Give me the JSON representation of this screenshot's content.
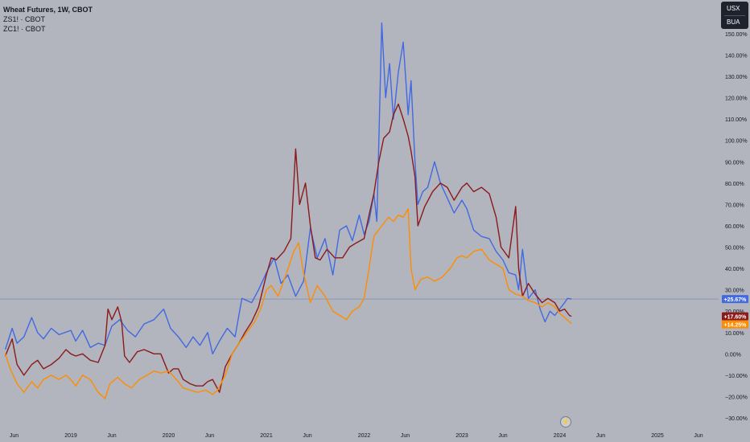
{
  "legend": {
    "title": "Wheat Futures, 1W, CBOT",
    "line2": "ZS1! · CBOT",
    "line3": "ZC1! · CBOT"
  },
  "currency": {
    "primary": "USX",
    "secondary": "BUA"
  },
  "colors": {
    "background": "#b2b5be",
    "wheat": "#4169e1",
    "soybeans": "#8b1a1a",
    "corn": "#ff8c00",
    "baseline": "#7a8fb8",
    "axis_text": "#131722"
  },
  "icons": {
    "replay": "lightning-icon"
  },
  "chart_data": {
    "type": "line",
    "title": "Wheat Futures, 1W, CBOT",
    "y_unit": "%",
    "ylim": [
      -33,
      162
    ],
    "grid": false,
    "legend_position": "top-left",
    "y_ticks": [
      -30,
      -20,
      -10,
      0,
      10,
      20,
      30,
      40,
      50,
      60,
      70,
      80,
      90,
      100,
      110,
      120,
      130,
      140,
      150
    ],
    "y_tick_labels": [
      "−30.00%",
      "−20.00%",
      "−10.00%",
      "0.00%",
      "10.00%",
      "20.00%",
      "30.00%",
      "40.00%",
      "50.00%",
      "60.00%",
      "70.00%",
      "80.00%",
      "90.00%",
      "100.00%",
      "110.00%",
      "120.00%",
      "130.00%",
      "140.00%",
      "150.00%"
    ],
    "x_ticks": [
      {
        "t": 2018.42,
        "label": "Jun"
      },
      {
        "t": 2019.0,
        "label": "2019"
      },
      {
        "t": 2019.42,
        "label": "Jun"
      },
      {
        "t": 2020.0,
        "label": "2020"
      },
      {
        "t": 2020.42,
        "label": "Jun"
      },
      {
        "t": 2021.0,
        "label": "2021"
      },
      {
        "t": 2021.42,
        "label": "Jun"
      },
      {
        "t": 2022.0,
        "label": "2022"
      },
      {
        "t": 2022.42,
        "label": "Jun"
      },
      {
        "t": 2023.0,
        "label": "2023"
      },
      {
        "t": 2023.42,
        "label": "Jun"
      },
      {
        "t": 2024.0,
        "label": "2024"
      },
      {
        "t": 2024.42,
        "label": "Jun"
      },
      {
        "t": 2025.0,
        "label": "2025"
      },
      {
        "t": 2025.42,
        "label": "Jun"
      }
    ],
    "xlim": [
      2018.33,
      2025.7
    ],
    "baseline_value": 25.67,
    "series": [
      {
        "name": "Wheat Futures",
        "color": "#4169e1",
        "last_label": "+25.67%",
        "points": [
          [
            2018.33,
            2
          ],
          [
            2018.4,
            12
          ],
          [
            2018.45,
            5
          ],
          [
            2018.52,
            8
          ],
          [
            2018.6,
            17
          ],
          [
            2018.66,
            10
          ],
          [
            2018.72,
            7
          ],
          [
            2018.8,
            12
          ],
          [
            2018.88,
            9
          ],
          [
            2019.0,
            11
          ],
          [
            2019.05,
            6
          ],
          [
            2019.12,
            11
          ],
          [
            2019.2,
            3
          ],
          [
            2019.28,
            5
          ],
          [
            2019.35,
            4
          ],
          [
            2019.42,
            13
          ],
          [
            2019.5,
            16
          ],
          [
            2019.58,
            11
          ],
          [
            2019.66,
            8
          ],
          [
            2019.75,
            14
          ],
          [
            2019.85,
            16
          ],
          [
            2019.95,
            21
          ],
          [
            2020.02,
            12
          ],
          [
            2020.1,
            8
          ],
          [
            2020.18,
            3
          ],
          [
            2020.25,
            8
          ],
          [
            2020.32,
            4
          ],
          [
            2020.4,
            10
          ],
          [
            2020.45,
            0
          ],
          [
            2020.52,
            6
          ],
          [
            2020.6,
            12
          ],
          [
            2020.68,
            8
          ],
          [
            2020.75,
            26
          ],
          [
            2020.85,
            24
          ],
          [
            2020.92,
            30
          ],
          [
            2021.0,
            38
          ],
          [
            2021.08,
            45
          ],
          [
            2021.15,
            33
          ],
          [
            2021.22,
            37
          ],
          [
            2021.3,
            27
          ],
          [
            2021.38,
            34
          ],
          [
            2021.45,
            59
          ],
          [
            2021.52,
            45
          ],
          [
            2021.6,
            54
          ],
          [
            2021.68,
            37
          ],
          [
            2021.75,
            58
          ],
          [
            2021.82,
            60
          ],
          [
            2021.88,
            53
          ],
          [
            2021.95,
            65
          ],
          [
            2022.0,
            56
          ],
          [
            2022.05,
            62
          ],
          [
            2022.1,
            75
          ],
          [
            2022.13,
            62
          ],
          [
            2022.18,
            155
          ],
          [
            2022.22,
            120
          ],
          [
            2022.26,
            136
          ],
          [
            2022.3,
            110
          ],
          [
            2022.35,
            132
          ],
          [
            2022.4,
            146
          ],
          [
            2022.45,
            112
          ],
          [
            2022.48,
            128
          ],
          [
            2022.52,
            90
          ],
          [
            2022.55,
            70
          ],
          [
            2022.6,
            76
          ],
          [
            2022.65,
            78
          ],
          [
            2022.72,
            90
          ],
          [
            2022.78,
            80
          ],
          [
            2022.85,
            73
          ],
          [
            2022.92,
            66
          ],
          [
            2023.0,
            72
          ],
          [
            2023.05,
            68
          ],
          [
            2023.12,
            58
          ],
          [
            2023.2,
            55
          ],
          [
            2023.28,
            54
          ],
          [
            2023.35,
            48
          ],
          [
            2023.42,
            44
          ],
          [
            2023.48,
            38
          ],
          [
            2023.55,
            37
          ],
          [
            2023.58,
            30
          ],
          [
            2023.62,
            49
          ],
          [
            2023.68,
            26
          ],
          [
            2023.75,
            30
          ],
          [
            2023.8,
            21
          ],
          [
            2023.85,
            15
          ],
          [
            2023.9,
            20
          ],
          [
            2023.95,
            18
          ],
          [
            2024.0,
            21
          ],
          [
            2024.05,
            24
          ],
          [
            2024.08,
            26
          ],
          [
            2024.12,
            25.67
          ]
        ]
      },
      {
        "name": "ZS1! · CBOT",
        "color": "#8b1a1a",
        "last_label": "+17.60%",
        "points": [
          [
            2018.33,
            -1
          ],
          [
            2018.4,
            7
          ],
          [
            2018.45,
            -5
          ],
          [
            2018.52,
            -10
          ],
          [
            2018.6,
            -5
          ],
          [
            2018.66,
            -3
          ],
          [
            2018.72,
            -7
          ],
          [
            2018.8,
            -5
          ],
          [
            2018.88,
            -2
          ],
          [
            2018.95,
            2
          ],
          [
            2019.0,
            0
          ],
          [
            2019.05,
            -1
          ],
          [
            2019.12,
            0
          ],
          [
            2019.2,
            -3
          ],
          [
            2019.28,
            -4
          ],
          [
            2019.35,
            4
          ],
          [
            2019.38,
            21
          ],
          [
            2019.42,
            16
          ],
          [
            2019.48,
            22
          ],
          [
            2019.52,
            15
          ],
          [
            2019.55,
            -1
          ],
          [
            2019.6,
            -4
          ],
          [
            2019.68,
            1
          ],
          [
            2019.75,
            2
          ],
          [
            2019.85,
            0
          ],
          [
            2019.92,
            0
          ],
          [
            2020.0,
            -9
          ],
          [
            2020.05,
            -7
          ],
          [
            2020.1,
            -7
          ],
          [
            2020.15,
            -12
          ],
          [
            2020.22,
            -14
          ],
          [
            2020.28,
            -15
          ],
          [
            2020.35,
            -15
          ],
          [
            2020.4,
            -13
          ],
          [
            2020.45,
            -12
          ],
          [
            2020.52,
            -18
          ],
          [
            2020.58,
            -6
          ],
          [
            2020.65,
            0
          ],
          [
            2020.72,
            5
          ],
          [
            2020.78,
            10
          ],
          [
            2020.85,
            15
          ],
          [
            2020.92,
            22
          ],
          [
            2021.0,
            37
          ],
          [
            2021.05,
            45
          ],
          [
            2021.1,
            44
          ],
          [
            2021.18,
            48
          ],
          [
            2021.25,
            54
          ],
          [
            2021.3,
            96
          ],
          [
            2021.34,
            70
          ],
          [
            2021.4,
            80
          ],
          [
            2021.45,
            60
          ],
          [
            2021.5,
            45
          ],
          [
            2021.55,
            44
          ],
          [
            2021.62,
            49
          ],
          [
            2021.7,
            45
          ],
          [
            2021.78,
            45
          ],
          [
            2021.85,
            50
          ],
          [
            2021.92,
            52
          ],
          [
            2022.0,
            54
          ],
          [
            2022.05,
            65
          ],
          [
            2022.1,
            75
          ],
          [
            2022.15,
            90
          ],
          [
            2022.2,
            101
          ],
          [
            2022.26,
            104
          ],
          [
            2022.3,
            112
          ],
          [
            2022.35,
            117
          ],
          [
            2022.4,
            110
          ],
          [
            2022.45,
            102
          ],
          [
            2022.48,
            95
          ],
          [
            2022.52,
            83
          ],
          [
            2022.55,
            60
          ],
          [
            2022.62,
            69
          ],
          [
            2022.7,
            76
          ],
          [
            2022.78,
            80
          ],
          [
            2022.85,
            78
          ],
          [
            2022.92,
            72
          ],
          [
            2023.0,
            78
          ],
          [
            2023.05,
            80
          ],
          [
            2023.12,
            76
          ],
          [
            2023.2,
            78
          ],
          [
            2023.28,
            75
          ],
          [
            2023.35,
            64
          ],
          [
            2023.4,
            50
          ],
          [
            2023.48,
            45
          ],
          [
            2023.55,
            69
          ],
          [
            2023.58,
            40
          ],
          [
            2023.62,
            27
          ],
          [
            2023.68,
            33
          ],
          [
            2023.75,
            28
          ],
          [
            2023.82,
            24
          ],
          [
            2023.88,
            26
          ],
          [
            2023.95,
            24
          ],
          [
            2024.0,
            20
          ],
          [
            2024.05,
            21
          ],
          [
            2024.1,
            18
          ],
          [
            2024.12,
            17.6
          ]
        ]
      },
      {
        "name": "ZC1! · CBOT",
        "color": "#ff8c00",
        "last_label": "+14.25%",
        "points": [
          [
            2018.33,
            0
          ],
          [
            2018.38,
            -7
          ],
          [
            2018.45,
            -14
          ],
          [
            2018.52,
            -18
          ],
          [
            2018.6,
            -13
          ],
          [
            2018.66,
            -16
          ],
          [
            2018.72,
            -12
          ],
          [
            2018.8,
            -10
          ],
          [
            2018.88,
            -12
          ],
          [
            2018.95,
            -10
          ],
          [
            2019.0,
            -12
          ],
          [
            2019.05,
            -15
          ],
          [
            2019.12,
            -10
          ],
          [
            2019.2,
            -12
          ],
          [
            2019.28,
            -18
          ],
          [
            2019.35,
            -21
          ],
          [
            2019.4,
            -14
          ],
          [
            2019.48,
            -11
          ],
          [
            2019.55,
            -14
          ],
          [
            2019.62,
            -16
          ],
          [
            2019.7,
            -12
          ],
          [
            2019.78,
            -10
          ],
          [
            2019.85,
            -8
          ],
          [
            2019.92,
            -9
          ],
          [
            2020.0,
            -8
          ],
          [
            2020.08,
            -12
          ],
          [
            2020.15,
            -16
          ],
          [
            2020.22,
            -17
          ],
          [
            2020.3,
            -18
          ],
          [
            2020.38,
            -17
          ],
          [
            2020.45,
            -19
          ],
          [
            2020.5,
            -17
          ],
          [
            2020.58,
            -10
          ],
          [
            2020.65,
            0
          ],
          [
            2020.72,
            5
          ],
          [
            2020.8,
            10
          ],
          [
            2020.88,
            15
          ],
          [
            2020.95,
            22
          ],
          [
            2021.0,
            30
          ],
          [
            2021.05,
            32
          ],
          [
            2021.12,
            27
          ],
          [
            2021.2,
            37
          ],
          [
            2021.28,
            48
          ],
          [
            2021.33,
            52
          ],
          [
            2021.38,
            38
          ],
          [
            2021.42,
            30
          ],
          [
            2021.45,
            24
          ],
          [
            2021.52,
            32
          ],
          [
            2021.6,
            27
          ],
          [
            2021.68,
            20
          ],
          [
            2021.75,
            18
          ],
          [
            2021.82,
            16
          ],
          [
            2021.88,
            20
          ],
          [
            2021.95,
            22
          ],
          [
            2022.0,
            26
          ],
          [
            2022.05,
            40
          ],
          [
            2022.1,
            55
          ],
          [
            2022.18,
            60
          ],
          [
            2022.25,
            64
          ],
          [
            2022.3,
            62
          ],
          [
            2022.35,
            65
          ],
          [
            2022.4,
            64
          ],
          [
            2022.45,
            68
          ],
          [
            2022.48,
            40
          ],
          [
            2022.52,
            30
          ],
          [
            2022.58,
            35
          ],
          [
            2022.65,
            36
          ],
          [
            2022.72,
            34
          ],
          [
            2022.8,
            36
          ],
          [
            2022.88,
            40
          ],
          [
            2022.95,
            45
          ],
          [
            2023.0,
            46
          ],
          [
            2023.05,
            45
          ],
          [
            2023.12,
            48
          ],
          [
            2023.2,
            49
          ],
          [
            2023.28,
            44
          ],
          [
            2023.35,
            42
          ],
          [
            2023.42,
            40
          ],
          [
            2023.48,
            30
          ],
          [
            2023.55,
            28
          ],
          [
            2023.62,
            27
          ],
          [
            2023.68,
            25
          ],
          [
            2023.75,
            24
          ],
          [
            2023.82,
            22
          ],
          [
            2023.88,
            24
          ],
          [
            2023.95,
            22
          ],
          [
            2024.0,
            19
          ],
          [
            2024.05,
            17
          ],
          [
            2024.1,
            15
          ],
          [
            2024.12,
            14.25
          ]
        ]
      }
    ]
  }
}
